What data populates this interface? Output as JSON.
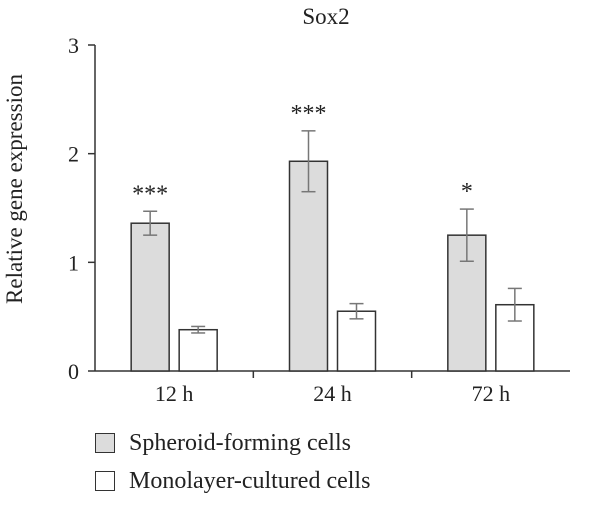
{
  "chart_data": {
    "type": "bar",
    "title": "Sox2",
    "xlabel": "",
    "ylabel": "Relative gene expression",
    "ylim": [
      0,
      3
    ],
    "yticks": [
      "0",
      "1",
      "2",
      "3"
    ],
    "categories": [
      "12 h",
      "24 h",
      "72 h"
    ],
    "series": [
      {
        "name": "Spheroid-forming cells",
        "color": "#dcdcdc",
        "values": [
          1.36,
          1.93,
          1.25
        ],
        "error": [
          0.11,
          0.28,
          0.24
        ],
        "annotations": [
          "***",
          "***",
          "*"
        ]
      },
      {
        "name": "Monolayer-cultured cells",
        "color": "#ffffff",
        "values": [
          0.38,
          0.55,
          0.61
        ],
        "error": [
          0.03,
          0.07,
          0.15
        ],
        "annotations": [
          "",
          "",
          ""
        ]
      }
    ],
    "grid": false,
    "legend_position": "bottom-left"
  }
}
